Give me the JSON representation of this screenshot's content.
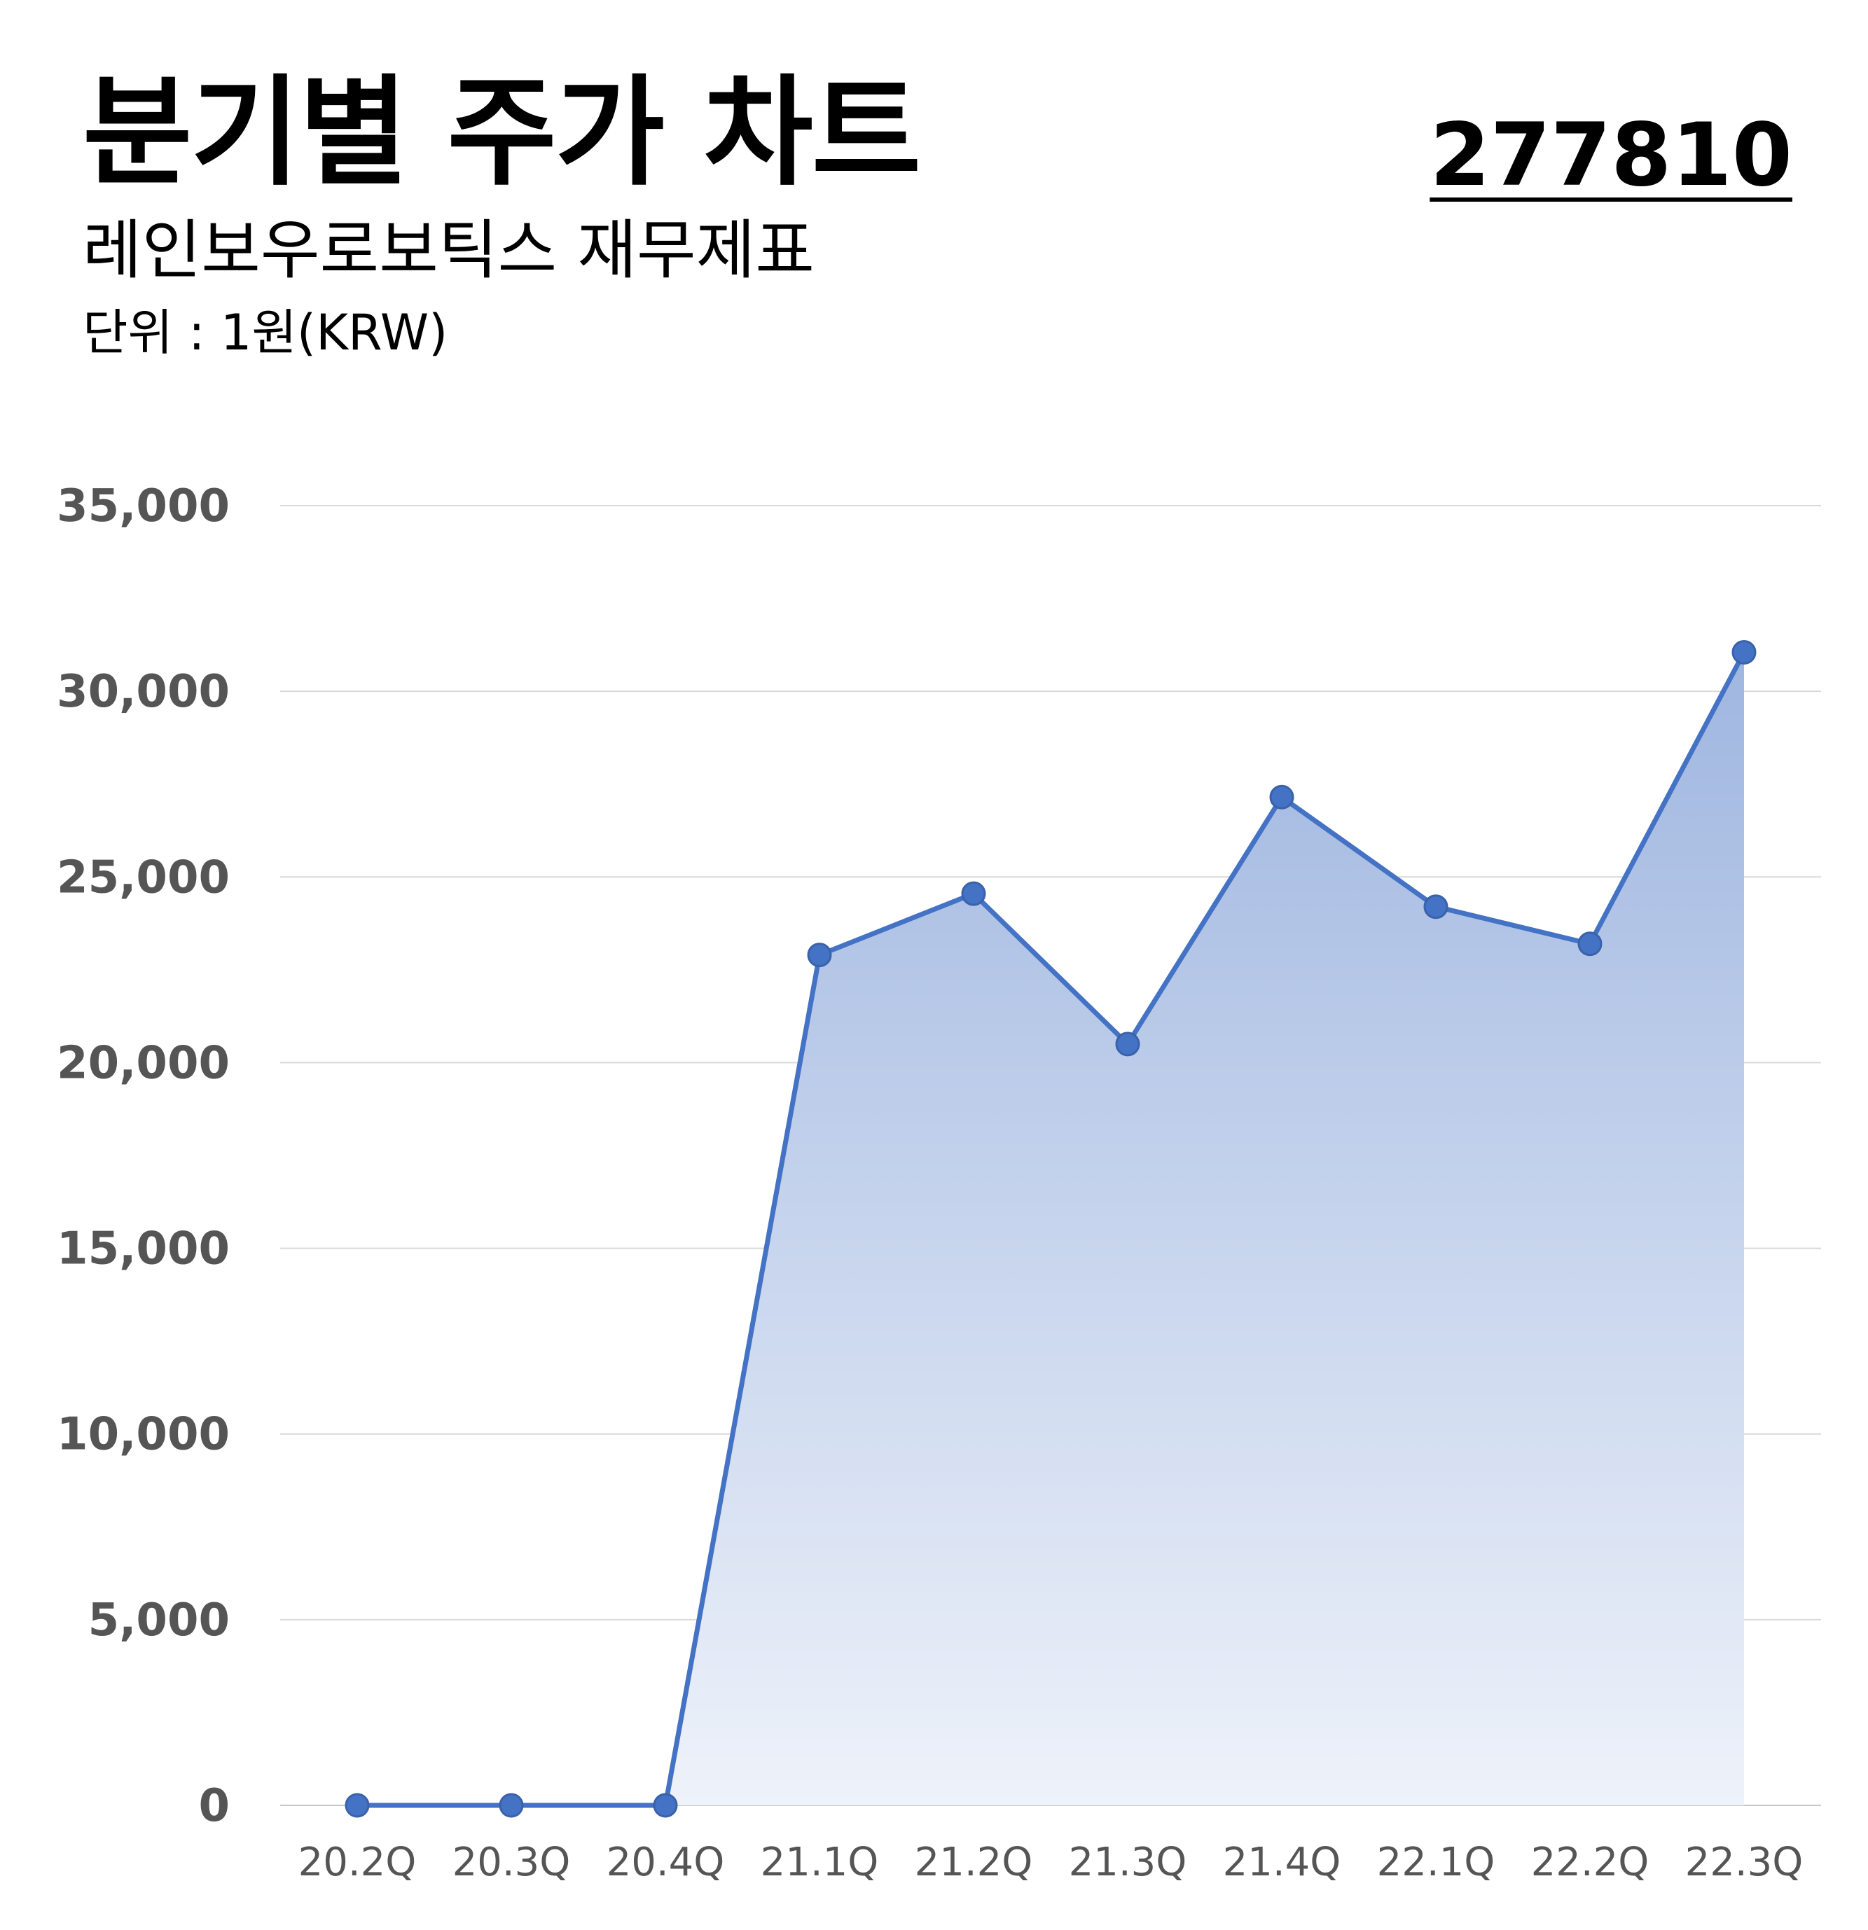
{
  "header": {
    "title": "분기별 주가 차트",
    "subtitle": "레인보우로보틱스 재무제표",
    "unit": "단위 : 1원(KRW)",
    "code": "277810"
  },
  "colors": {
    "line": "#4472c4",
    "fill_top": "#9fb6e0",
    "fill_bottom": "#eef2fa",
    "grid": "#d9d9d9",
    "tick_text": "#555555"
  },
  "chart_data": {
    "type": "area",
    "categories": [
      "20.2Q",
      "20.3Q",
      "20.4Q",
      "21.1Q",
      "21.2Q",
      "21.3Q",
      "21.4Q",
      "22.1Q",
      "22.2Q",
      "22.3Q"
    ],
    "values": [
      0,
      0,
      0,
      22900,
      24550,
      20500,
      27150,
      24200,
      23200,
      31050
    ],
    "ylim": [
      0,
      35000
    ],
    "yticks": [
      0,
      5000,
      10000,
      15000,
      20000,
      25000,
      30000,
      35000
    ],
    "ytick_labels": [
      "0",
      "5,000",
      "10,000",
      "15,000",
      "20,000",
      "25,000",
      "30,000",
      "35,000"
    ],
    "grid": true,
    "markers": true,
    "legend": "none"
  }
}
